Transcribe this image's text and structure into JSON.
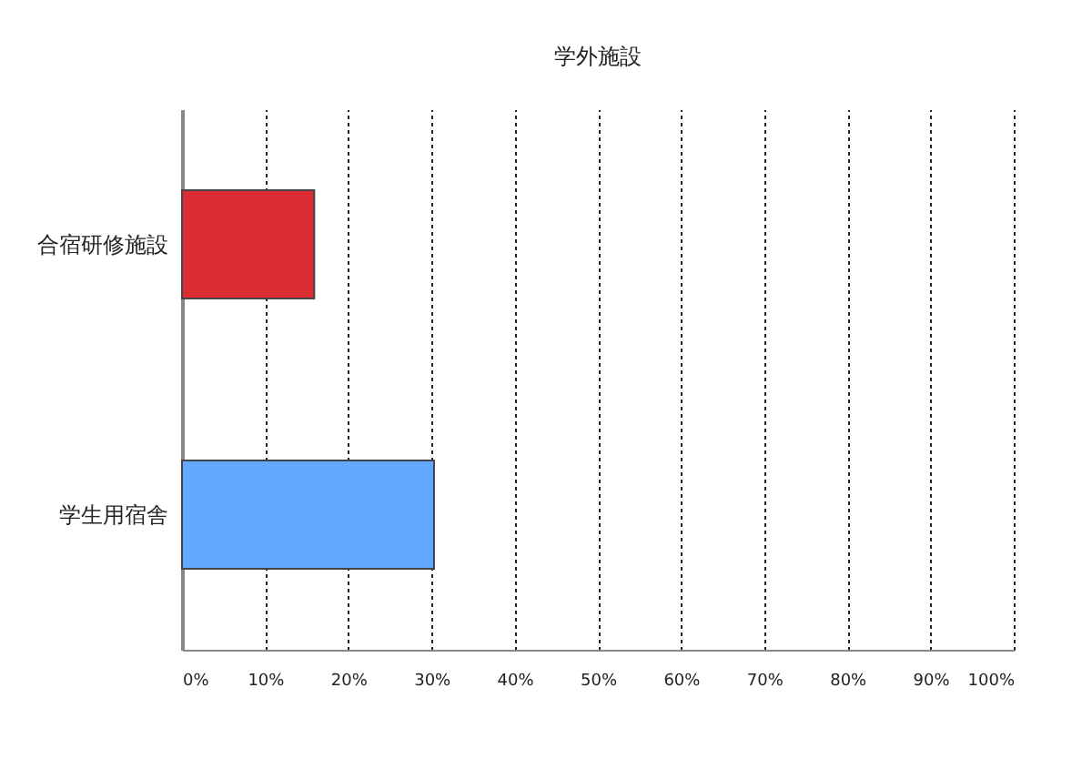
{
  "chart_data": {
    "type": "bar",
    "orientation": "horizontal",
    "title": "学外施設",
    "categories": [
      "合宿研修施設",
      "学生用宿舎"
    ],
    "values": [
      15.9,
      30.3
    ],
    "colors": [
      "#dc2d34",
      "#63a8ff"
    ],
    "xlim": [
      0,
      100
    ],
    "xticks": [
      {
        "value": 0,
        "label": "0%"
      },
      {
        "value": 10,
        "label": "10%"
      },
      {
        "value": 20,
        "label": "20%"
      },
      {
        "value": 30,
        "label": "30%"
      },
      {
        "value": 40,
        "label": "40%"
      },
      {
        "value": 50,
        "label": "50%"
      },
      {
        "value": 60,
        "label": "60%"
      },
      {
        "value": 70,
        "label": "70%"
      },
      {
        "value": 80,
        "label": "80%"
      },
      {
        "value": 90,
        "label": "90%"
      },
      {
        "value": 100,
        "label": "100%"
      }
    ],
    "grid": "x"
  }
}
